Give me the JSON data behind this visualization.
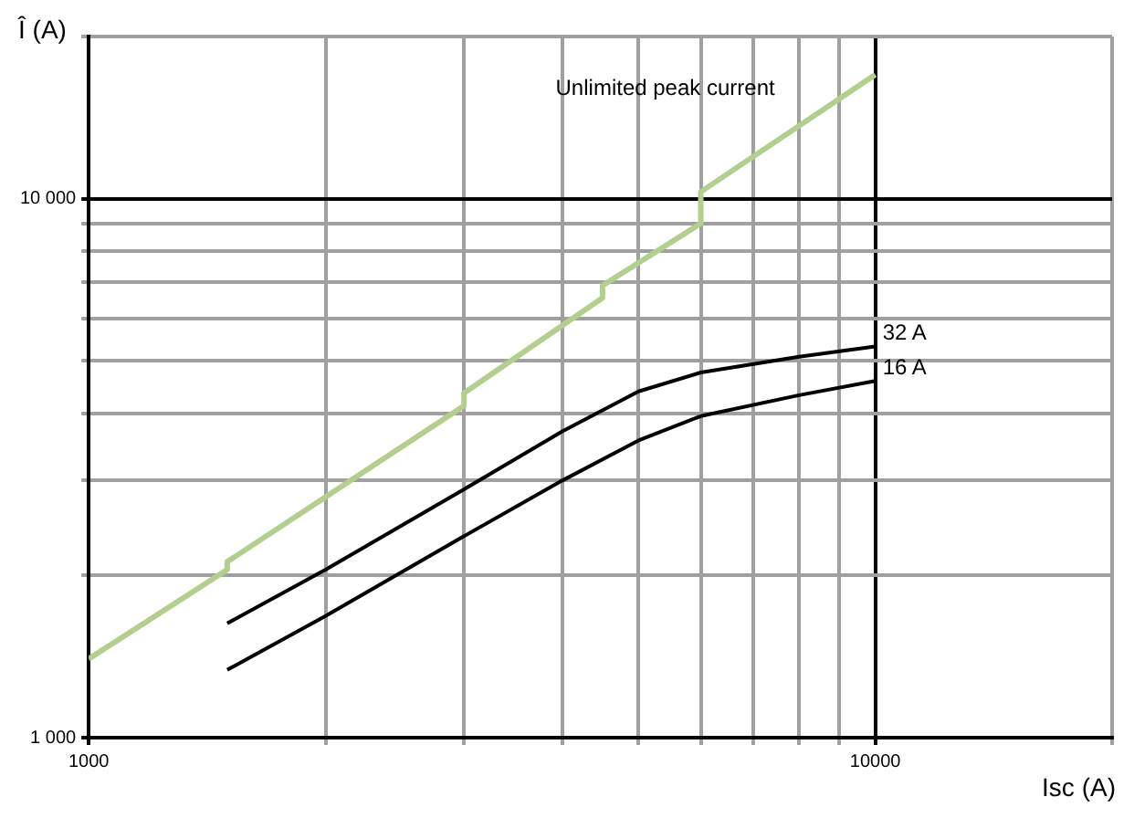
{
  "chart_data": {
    "type": "line",
    "xlabel": "Isc (A)",
    "ylabel": "Î (A)",
    "log": "xy",
    "grid": true,
    "legend": false,
    "marker": "none",
    "line_style": "solid",
    "xlim": [
      1000,
      20000
    ],
    "ylim": [
      1000,
      20000
    ],
    "xticks": [
      1000,
      {
        "value": 2000,
        "label": null
      },
      {
        "value": 3000,
        "label": null
      },
      {
        "value": 4000,
        "label": null
      },
      {
        "value": 5000,
        "label": null
      },
      {
        "value": 6000,
        "label": null
      },
      {
        "value": 7000,
        "label": null
      },
      {
        "value": 8000,
        "label": null
      },
      {
        "value": 9000,
        "label": null
      },
      10000,
      {
        "value": 20000,
        "label": null
      }
    ],
    "yticks": [
      {
        "value": 1000,
        "label": "1 000"
      },
      {
        "value": 2000,
        "label": null
      },
      {
        "value": 3000,
        "label": null
      },
      {
        "value": 4000,
        "label": null
      },
      {
        "value": 5000,
        "label": null
      },
      {
        "value": 6000,
        "label": null
      },
      {
        "value": 7000,
        "label": null
      },
      {
        "value": 8000,
        "label": null
      },
      {
        "value": 9000,
        "label": null
      },
      {
        "value": 10000,
        "label": "10 000"
      },
      {
        "value": 20000,
        "label": null
      }
    ],
    "series": [
      {
        "name": "Unlimited peak current",
        "color": "#b3cf8f",
        "x": [
          1000,
          1500,
          1500,
          3000,
          3000,
          4500,
          4500,
          6000,
          6000,
          10000
        ],
        "values": [
          1400,
          2050,
          2120,
          4130,
          4360,
          6550,
          6900,
          9000,
          10300,
          17000
        ]
      },
      {
        "name": "32 A",
        "color": "#000000",
        "x": [
          1500,
          2000,
          3000,
          4000,
          5000,
          6000,
          8000,
          10000
        ],
        "values": [
          1630,
          2050,
          2890,
          3700,
          4390,
          4760,
          5090,
          5320
        ]
      },
      {
        "name": "16 A",
        "color": "#000000",
        "x": [
          1500,
          2000,
          3000,
          4000,
          5000,
          6000,
          8000,
          10000
        ],
        "values": [
          1336,
          1682,
          2365,
          3000,
          3560,
          3950,
          4320,
          4590
        ]
      }
    ]
  }
}
